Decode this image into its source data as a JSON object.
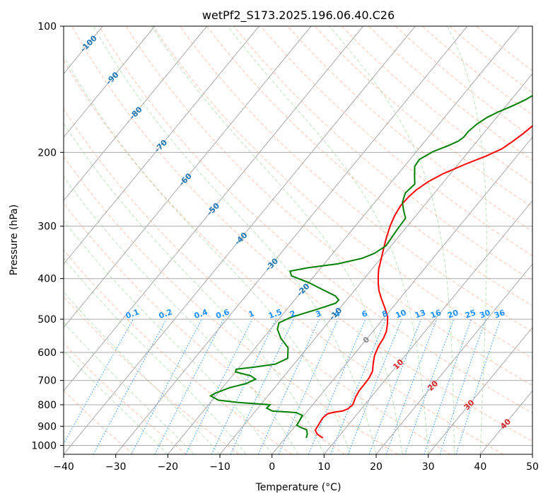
{
  "chart_data": {
    "type": "line",
    "chart_kind": "skew-T log-P diagram",
    "title": "wetPf2_S173.2025.196.06.40.C26",
    "xlabel": "Temperature (°C)",
    "ylabel": "Pressure (hPa)",
    "xlim": [
      -40,
      50
    ],
    "ylim": [
      1050,
      100
    ],
    "y_scale": "log",
    "x_ticks": [
      "−40",
      "−30",
      "−20",
      "−10",
      "0",
      "10",
      "20",
      "30",
      "40",
      "50"
    ],
    "y_ticks": [
      "100",
      "200",
      "300",
      "400",
      "500",
      "600",
      "700",
      "800",
      "900",
      "1000"
    ],
    "grid": true,
    "colors": {
      "temperature": "#ff0000",
      "dewpoint": "#008000",
      "dry_adiabat": "#ff7f50",
      "moist_adiabat": "#2ca02c",
      "mixing_ratio": "#1e90ff",
      "isotherm_label": "#1f77b4",
      "hot_isotherm_label": "#d62728",
      "grid": "#aaaaaa"
    },
    "series": [
      {
        "key": "temperature",
        "points": [
          [
            7.2,
            960
          ],
          [
            5.5,
            940
          ],
          [
            4.5,
            920
          ],
          [
            4.3,
            895
          ],
          [
            4.0,
            860
          ],
          [
            4.3,
            840
          ],
          [
            5.5,
            832
          ],
          [
            6.7,
            828
          ],
          [
            7.4,
            818
          ],
          [
            7.7,
            800
          ],
          [
            7.0,
            765
          ],
          [
            6.7,
            740
          ],
          [
            6.7,
            715
          ],
          [
            6.6,
            690
          ],
          [
            6.2,
            665
          ],
          [
            5.2,
            640
          ],
          [
            4.1,
            610
          ],
          [
            3.4,
            580
          ],
          [
            3.1,
            555
          ],
          [
            2.6,
            535
          ],
          [
            1.7,
            515
          ],
          [
            0.5,
            493
          ],
          [
            -1.4,
            470
          ],
          [
            -3.5,
            447
          ],
          [
            -5.3,
            427
          ],
          [
            -6.6,
            410
          ],
          [
            -7.6,
            396
          ],
          [
            -8.7,
            380
          ],
          [
            -9.5,
            365
          ],
          [
            -10.9,
            341
          ],
          [
            -12.1,
            321
          ],
          [
            -13.3,
            300
          ],
          [
            -14.1,
            283
          ],
          [
            -14.5,
            268
          ],
          [
            -14.4,
            256
          ],
          [
            -14.0,
            246
          ],
          [
            -13.0,
            235
          ],
          [
            -11.4,
            225
          ],
          [
            -8.5,
            213
          ],
          [
            -5.9,
            204
          ],
          [
            -4.0,
            196
          ],
          [
            -3.1,
            188
          ],
          [
            -2.3,
            180
          ],
          [
            -1.7,
            172
          ],
          [
            -0.9,
            164
          ],
          [
            0.3,
            155
          ],
          [
            1.1,
            150
          ],
          [
            2.2,
            145
          ],
          [
            2.8,
            140
          ],
          [
            3.5,
            135
          ],
          [
            4.1,
            130
          ],
          [
            4.7,
            125
          ],
          [
            5.2,
            120
          ],
          [
            5.9,
            115
          ],
          [
            6.5,
            110
          ],
          [
            7.3,
            105
          ],
          [
            7.9,
            100
          ]
        ]
      },
      {
        "key": "dewpoint",
        "points": [
          [
            4.0,
            960
          ],
          [
            3.6,
            940
          ],
          [
            2.8,
            918
          ],
          [
            1.2,
            905
          ],
          [
            0.2,
            895
          ],
          [
            0.0,
            875
          ],
          [
            -0.3,
            848
          ],
          [
            -2.0,
            835
          ],
          [
            -6.7,
            828
          ],
          [
            -8.3,
            815
          ],
          [
            -8.2,
            800
          ],
          [
            -14.6,
            790
          ],
          [
            -18.8,
            780
          ],
          [
            -20.0,
            770
          ],
          [
            -21.0,
            762
          ],
          [
            -20.5,
            750
          ],
          [
            -18.6,
            728
          ],
          [
            -16.1,
            712
          ],
          [
            -15.0,
            695
          ],
          [
            -16.5,
            682
          ],
          [
            -20.0,
            668
          ],
          [
            -20.3,
            658
          ],
          [
            -17.0,
            650
          ],
          [
            -13.6,
            640
          ],
          [
            -12.1,
            620
          ],
          [
            -13.7,
            585
          ],
          [
            -16.6,
            555
          ],
          [
            -18.7,
            528
          ],
          [
            -19.4,
            510
          ],
          [
            -18.0,
            495
          ],
          [
            -14.1,
            473
          ],
          [
            -11.6,
            458
          ],
          [
            -11.5,
            450
          ],
          [
            -12.8,
            440
          ],
          [
            -16.7,
            423
          ],
          [
            -20.0,
            409
          ],
          [
            -24.4,
            394
          ],
          [
            -25.4,
            384
          ],
          [
            -22.6,
            377
          ],
          [
            -17.4,
            369
          ],
          [
            -13.6,
            358
          ],
          [
            -12.0,
            348
          ],
          [
            -11.0,
            334
          ],
          [
            -11.4,
            306
          ],
          [
            -11.6,
            287
          ],
          [
            -13.2,
            275
          ],
          [
            -14.7,
            263
          ],
          [
            -15.6,
            250
          ],
          [
            -15.2,
            238
          ],
          [
            -16.6,
            227
          ],
          [
            -18.0,
            216
          ],
          [
            -18.2,
            208
          ],
          [
            -16.8,
            199
          ],
          [
            -14.9,
            193
          ],
          [
            -13.6,
            188
          ],
          [
            -13.2,
            184
          ],
          [
            -13.2,
            178
          ],
          [
            -12.7,
            171
          ],
          [
            -11.8,
            165
          ],
          [
            -10.5,
            160
          ],
          [
            -8.8,
            155
          ],
          [
            -7.3,
            150
          ],
          [
            -6.2,
            145
          ],
          [
            -5.2,
            140
          ],
          [
            -4.4,
            135
          ],
          [
            -3.8,
            130
          ],
          [
            -3.0,
            125
          ],
          [
            -2.2,
            120
          ],
          [
            -1.3,
            115
          ],
          [
            -0.4,
            110
          ],
          [
            0.6,
            105
          ],
          [
            1.7,
            100
          ]
        ]
      }
    ],
    "isotherm_labels": [
      "-100",
      "-90",
      "-80",
      "-70",
      "-60",
      "-50",
      "-40",
      "-30",
      "-20",
      "-10",
      "0",
      "10",
      "20",
      "30",
      "40"
    ],
    "mixing_ratio_labels": [
      "0.1",
      "0.2",
      "0.4",
      "0.6",
      "1",
      "1.5",
      "2",
      "3",
      "4",
      "6",
      "8",
      "10",
      "13",
      "16",
      "20",
      "25",
      "30",
      "36"
    ]
  }
}
